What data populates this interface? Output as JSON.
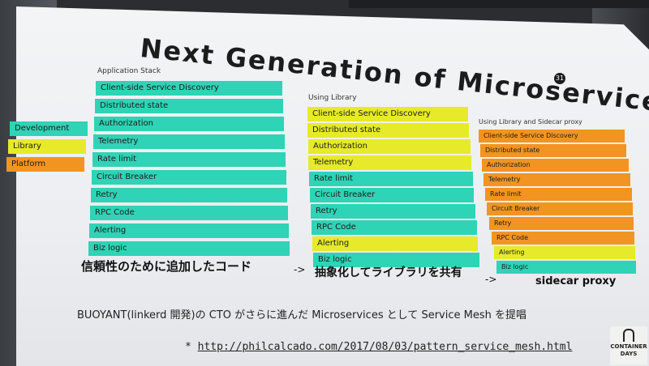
{
  "title": "Next Generation of Microservices",
  "page_number": "31",
  "colors": {
    "teal": "#2fd3b5",
    "yellow": "#e6ea2a",
    "orange": "#f29422"
  },
  "legend": [
    {
      "label": "Development",
      "color": "teal"
    },
    {
      "label": "Library",
      "color": "yellow"
    },
    {
      "label": "Platform",
      "color": "orange"
    }
  ],
  "stacks": [
    {
      "caption": "Application  Stack",
      "items": [
        {
          "label": "Client-side Service Discovery",
          "color": "teal"
        },
        {
          "label": "Distributed state",
          "color": "teal"
        },
        {
          "label": "Authorization",
          "color": "teal"
        },
        {
          "label": "Telemetry",
          "color": "teal"
        },
        {
          "label": "Rate limit",
          "color": "teal"
        },
        {
          "label": "Circuit Breaker",
          "color": "teal"
        },
        {
          "label": "Retry",
          "color": "teal"
        },
        {
          "label": "RPC Code",
          "color": "teal"
        },
        {
          "label": "Alerting",
          "color": "teal"
        },
        {
          "label": "Biz logic",
          "color": "teal"
        }
      ]
    },
    {
      "caption": "Using Library",
      "items": [
        {
          "label": "Client-side Service Discovery",
          "color": "yellow"
        },
        {
          "label": "Distributed state",
          "color": "yellow"
        },
        {
          "label": "Authorization",
          "color": "yellow"
        },
        {
          "label": "Telemetry",
          "color": "yellow"
        },
        {
          "label": "Rate limit",
          "color": "teal"
        },
        {
          "label": "Circuit Breaker",
          "color": "teal"
        },
        {
          "label": "Retry",
          "color": "teal"
        },
        {
          "label": "RPC Code",
          "color": "teal"
        },
        {
          "label": "Alerting",
          "color": "yellow"
        },
        {
          "label": "Biz logic",
          "color": "teal"
        }
      ]
    },
    {
      "caption": "Using Library and Sidecar proxy",
      "items": [
        {
          "label": "Client-side Service Discovery",
          "color": "orange"
        },
        {
          "label": "Distributed state",
          "color": "orange"
        },
        {
          "label": "Authorization",
          "color": "orange"
        },
        {
          "label": "Telemetry",
          "color": "orange"
        },
        {
          "label": "Rate limit",
          "color": "orange"
        },
        {
          "label": "Circuit Breaker",
          "color": "orange"
        },
        {
          "label": "Retry",
          "color": "orange"
        },
        {
          "label": "RPC Code",
          "color": "orange"
        },
        {
          "label": "Alerting",
          "color": "yellow"
        },
        {
          "label": "Biz logic",
          "color": "teal"
        }
      ]
    }
  ],
  "captions": {
    "added_code": "信頼性のために追加したコード",
    "arrow1": "->",
    "abstract": "抽象化してライブラリを共有",
    "arrow2": "->",
    "sidecar": "sidecar proxy"
  },
  "description": "BUOYANT(linkerd 開発)の CTO がさらに進んだ Microservices として Service Mesh を提唱",
  "link_prefix": "* ",
  "link": "http://philcalcado.com/2017/08/03/pattern_service_mesh.html",
  "logo_text": "CONTAINER DAYS"
}
